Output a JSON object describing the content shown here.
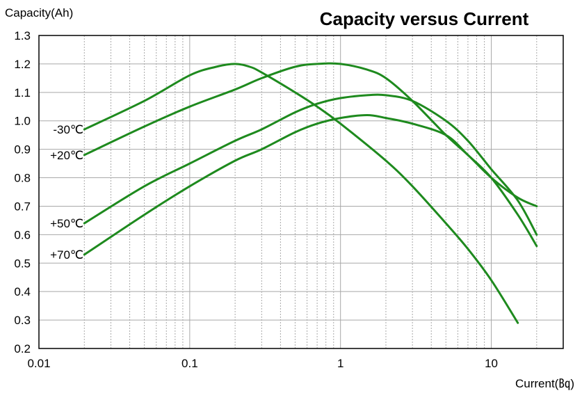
{
  "chart_data": {
    "type": "line",
    "title": "Capacity versus Current",
    "ylabel": "Capacity(Ah)",
    "xlabel": "Current(㏃)",
    "x_scale": "log",
    "xlim": [
      0.01,
      30
    ],
    "ylim": [
      0.2,
      1.3
    ],
    "x_ticks": [
      0.01,
      0.1,
      1,
      10
    ],
    "x_tick_labels": [
      "0.01",
      "0.1",
      "1",
      "10"
    ],
    "y_ticks": [
      0.2,
      0.3,
      0.4,
      0.5,
      0.6,
      0.7,
      0.8,
      0.9,
      1.0,
      1.1,
      1.2,
      1.3
    ],
    "y_tick_labels": [
      "0.2",
      "0.3",
      "0.4",
      "0.5",
      "0.6",
      "0.7",
      "0.8",
      "0.9",
      "1.0",
      "1.1",
      "1.2",
      "1.3"
    ],
    "grid": true,
    "line_color": "#1e8a1e",
    "series": [
      {
        "name": "-30℃",
        "x": [
          0.02,
          0.05,
          0.1,
          0.15,
          0.2,
          0.25,
          0.3,
          0.5,
          0.7,
          1,
          2,
          3,
          5,
          7,
          10,
          15
        ],
        "y": [
          0.97,
          1.07,
          1.16,
          1.19,
          1.2,
          1.19,
          1.17,
          1.1,
          1.05,
          0.99,
          0.86,
          0.77,
          0.64,
          0.55,
          0.44,
          0.29
        ]
      },
      {
        "name": "+20℃",
        "x": [
          0.02,
          0.05,
          0.1,
          0.2,
          0.3,
          0.5,
          0.7,
          1,
          1.5,
          2,
          3,
          5,
          7,
          10,
          15,
          20
        ],
        "y": [
          0.88,
          0.98,
          1.05,
          1.11,
          1.15,
          1.19,
          1.2,
          1.2,
          1.18,
          1.15,
          1.07,
          0.95,
          0.88,
          0.8,
          0.67,
          0.56
        ]
      },
      {
        "name": "+50℃",
        "x": [
          0.02,
          0.05,
          0.1,
          0.2,
          0.3,
          0.5,
          0.7,
          1,
          1.5,
          2,
          3,
          5,
          7,
          10,
          15,
          20
        ],
        "y": [
          0.64,
          0.77,
          0.85,
          0.93,
          0.97,
          1.03,
          1.06,
          1.08,
          1.09,
          1.09,
          1.07,
          1.0,
          0.93,
          0.83,
          0.72,
          0.6
        ]
      },
      {
        "name": "+70℃",
        "x": [
          0.02,
          0.05,
          0.1,
          0.2,
          0.3,
          0.5,
          0.7,
          1,
          1.5,
          2,
          3,
          5,
          7,
          10,
          15,
          20
        ],
        "y": [
          0.53,
          0.67,
          0.77,
          0.86,
          0.9,
          0.96,
          0.99,
          1.01,
          1.02,
          1.01,
          0.99,
          0.95,
          0.88,
          0.8,
          0.73,
          0.7
        ]
      }
    ]
  }
}
